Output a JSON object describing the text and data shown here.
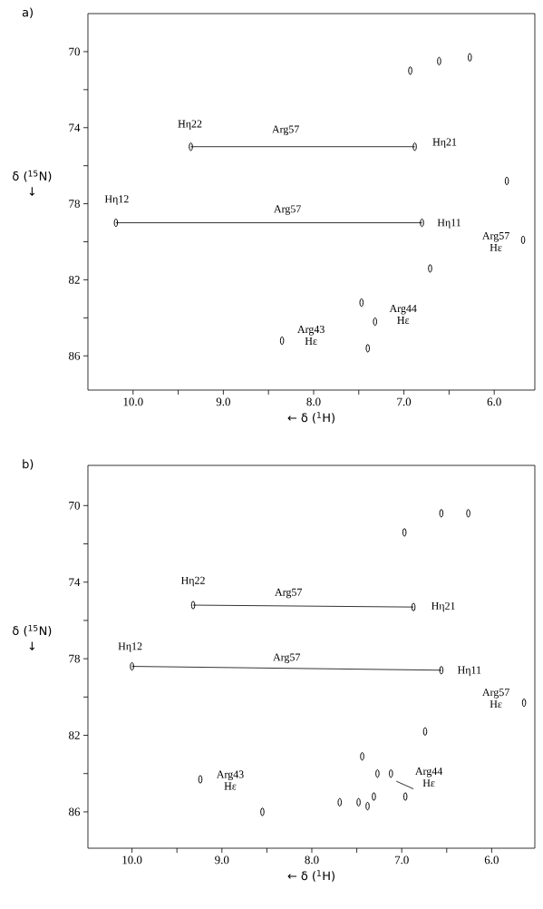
{
  "chart_data": [
    {
      "type": "scatter",
      "title": "a)",
      "xlabel": "← δ ($^{1}$H)",
      "ylabel": "δ ($^{15}$N) ↓",
      "xlim": [
        10.5,
        5.55
      ],
      "ylim": [
        87.8,
        68.0
      ],
      "xticks": [
        {
          "value": 10.0,
          "label": "10.0"
        },
        {
          "value": 9.5,
          "label": null
        },
        {
          "value": 9.0,
          "label": "9.0"
        },
        {
          "value": 8.5,
          "label": null
        },
        {
          "value": 8.0,
          "label": "8.0"
        },
        {
          "value": 7.5,
          "label": null
        },
        {
          "value": 7.0,
          "label": "7.0"
        },
        {
          "value": 6.5,
          "label": null
        },
        {
          "value": 6.0,
          "label": "6.0"
        }
      ],
      "yticks": [
        70,
        {
          "value": 72,
          "label": null
        },
        74,
        {
          "value": 76,
          "label": null
        },
        78,
        {
          "value": 80,
          "label": null
        },
        82,
        {
          "value": 84,
          "label": null
        },
        86
      ],
      "series": [
        {
          "marker": "circle",
          "color": "#000000",
          "x": [
            6.93,
            6.61,
            6.27,
            9.36,
            6.88,
            10.19,
            6.8,
            5.86,
            5.68,
            6.71,
            7.47,
            7.32,
            7.4,
            8.35
          ],
          "values": [
            71.0,
            70.5,
            70.3,
            75.0,
            75.0,
            79.0,
            79.0,
            76.8,
            79.9,
            81.4,
            83.2,
            84.2,
            85.6,
            85.2
          ]
        },
        {
          "type": "line",
          "color": "#000000",
          "x": [
            9.36,
            6.88
          ],
          "values": [
            75.0,
            75.0
          ]
        },
        {
          "type": "line",
          "color": "#000000",
          "x": [
            10.19,
            6.8
          ],
          "values": [
            79.0,
            79.0
          ]
        }
      ],
      "annotations": [
        {
          "text": "Hη22",
          "x": 9.36,
          "y": 75.0
        },
        {
          "text": "Arg57",
          "x": 8.31,
          "y": 75.0
        },
        {
          "text": "Hη21",
          "x": 6.88,
          "y": 75.0
        },
        {
          "text": "Hη12",
          "x": 10.19,
          "y": 79.0
        },
        {
          "text": "Arg57",
          "x": 8.29,
          "y": 79.0
        },
        {
          "text": "Hη11",
          "x": 6.8,
          "y": 79.0
        },
        {
          "text": "Arg57 Hε",
          "x": 5.68,
          "y": 79.9
        },
        {
          "text": "Arg44 Hε",
          "x": 7.32,
          "y": 84.2
        },
        {
          "text": "Arg43 Hε",
          "x": 8.35,
          "y": 85.2
        }
      ]
    },
    {
      "type": "scatter",
      "title": "b)",
      "xlabel": "← δ ($^{1}$H)",
      "ylabel": "δ ($^{15}$N) ↓",
      "xlim": [
        10.49,
        5.52
      ],
      "ylim": [
        87.9,
        67.9
      ],
      "xticks": [
        {
          "value": 10.0,
          "label": "10.0"
        },
        {
          "value": 9.5,
          "label": null
        },
        {
          "value": 9.0,
          "label": "9.0"
        },
        {
          "value": 8.5,
          "label": null
        },
        {
          "value": 8.0,
          "label": "8.0"
        },
        {
          "value": 7.5,
          "label": null
        },
        {
          "value": 7.0,
          "label": "7.0"
        },
        {
          "value": 6.5,
          "label": null
        },
        {
          "value": 6.0,
          "label": "6.0"
        }
      ],
      "yticks": [
        70,
        {
          "value": 72,
          "label": null
        },
        74,
        {
          "value": 76,
          "label": null
        },
        78,
        {
          "value": 80,
          "label": null
        },
        82,
        {
          "value": 84,
          "label": null
        },
        86
      ],
      "series": [
        {
          "marker": "circle",
          "color": "#000000",
          "x": [
            6.97,
            6.56,
            6.26,
            9.32,
            6.87,
            10.0,
            6.56,
            5.64,
            9.24,
            8.55,
            6.74,
            7.44,
            7.12,
            7.31,
            7.38,
            7.48,
            7.69,
            7.27,
            6.96
          ],
          "values": [
            71.4,
            70.4,
            70.4,
            75.2,
            75.3,
            78.4,
            78.6,
            80.3,
            84.3,
            86.0,
            81.8,
            83.1,
            84.0,
            85.2,
            85.7,
            85.5,
            85.5,
            84.0,
            85.2
          ]
        },
        {
          "type": "line",
          "color": "#000000",
          "x": [
            9.32,
            6.87
          ],
          "values": [
            75.2,
            75.3
          ]
        },
        {
          "type": "line",
          "color": "#000000",
          "x": [
            10.0,
            6.56
          ],
          "values": [
            78.4,
            78.6
          ]
        },
        {
          "type": "line",
          "color": "#000000",
          "x": [
            7.06,
            6.87
          ],
          "values": [
            84.4,
            84.8
          ]
        }
      ],
      "annotations": [
        {
          "text": "Hη22",
          "x": 9.32,
          "y": 75.2
        },
        {
          "text": "Arg57",
          "x": 8.26,
          "y": 75.2
        },
        {
          "text": "Hη21",
          "x": 6.87,
          "y": 75.3
        },
        {
          "text": "Hη12",
          "x": 10.0,
          "y": 78.4
        },
        {
          "text": "Arg57",
          "x": 8.28,
          "y": 78.5
        },
        {
          "text": "Hη11",
          "x": 6.56,
          "y": 78.6
        },
        {
          "text": "Arg57 Hε",
          "x": 5.64,
          "y": 80.3
        },
        {
          "text": "Arg43 Hε",
          "x": 9.24,
          "y": 84.3
        },
        {
          "text": "Arg44 Hε",
          "x": 6.87,
          "y": 84.8
        }
      ]
    }
  ]
}
